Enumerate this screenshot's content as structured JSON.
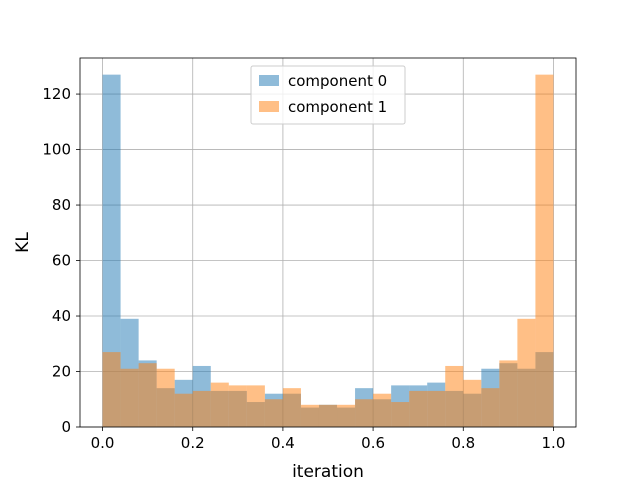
{
  "chart_data": {
    "type": "bar",
    "subtype": "overlapping-histogram",
    "xlabel": "iteration",
    "ylabel": "KL",
    "xlim": [
      -0.05,
      1.05
    ],
    "ylim": [
      0,
      133
    ],
    "xticks": [
      0.0,
      0.2,
      0.4,
      0.6,
      0.8,
      1.0
    ],
    "xtick_labels": [
      "0.0",
      "0.2",
      "0.4",
      "0.6",
      "0.8",
      "1.0"
    ],
    "yticks": [
      0,
      20,
      40,
      60,
      80,
      100,
      120
    ],
    "ytick_labels": [
      "0",
      "20",
      "40",
      "60",
      "80",
      "100",
      "120"
    ],
    "grid": true,
    "legend_position": "top-center",
    "bin_edges": [
      0.0,
      0.04,
      0.08,
      0.12,
      0.16,
      0.2,
      0.24,
      0.28,
      0.32,
      0.36,
      0.4,
      0.44,
      0.48,
      0.52,
      0.56,
      0.6,
      0.64,
      0.68,
      0.72,
      0.76,
      0.8,
      0.84,
      0.88,
      0.92,
      0.96,
      1.0
    ],
    "series": [
      {
        "name": "component 0",
        "color": "#1f77b4",
        "opacity": 0.5,
        "values": [
          127,
          39,
          24,
          14,
          17,
          22,
          13,
          13,
          9,
          12,
          12,
          7,
          8,
          7,
          14,
          10,
          15,
          15,
          16,
          13,
          12,
          21,
          23,
          21,
          27
        ]
      },
      {
        "name": "component 1",
        "color": "#ff7f0e",
        "opacity": 0.5,
        "values": [
          27,
          21,
          23,
          21,
          12,
          13,
          16,
          15,
          15,
          10,
          14,
          8,
          8,
          8,
          10,
          12,
          9,
          13,
          13,
          22,
          17,
          14,
          24,
          39,
          127
        ]
      }
    ]
  }
}
